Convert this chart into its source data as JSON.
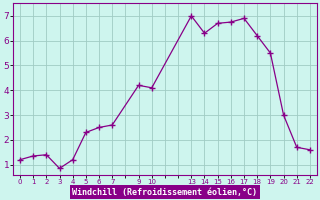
{
  "x": [
    0,
    1,
    2,
    3,
    4,
    5,
    6,
    7,
    9,
    10,
    13,
    14,
    15,
    16,
    17,
    18,
    19,
    20,
    21,
    22
  ],
  "y": [
    1.2,
    1.35,
    1.4,
    0.85,
    1.2,
    2.3,
    2.5,
    2.6,
    4.2,
    4.1,
    7.0,
    6.3,
    6.7,
    6.75,
    6.9,
    6.2,
    5.5,
    3.0,
    1.7,
    1.6
  ],
  "line_color": "#880088",
  "marker_color": "#880088",
  "bg_color": "#cef5ee",
  "grid_color": "#a0ccc4",
  "xlabel": "Windchill (Refroidissement éolien,°C)",
  "xlabel_color": "#880088",
  "ytick_labels": [
    "1",
    "2",
    "3",
    "4",
    "5",
    "6",
    "7"
  ],
  "ytick_vals": [
    1,
    2,
    3,
    4,
    5,
    6,
    7
  ],
  "xtick_vals": [
    0,
    1,
    2,
    3,
    4,
    5,
    6,
    7,
    8,
    9,
    10,
    11,
    12,
    13,
    14,
    15,
    16,
    17,
    18,
    19,
    20,
    21,
    22
  ],
  "xtick_labels": [
    "0",
    "1",
    "2",
    "3",
    "4",
    "5",
    "6",
    "7",
    "",
    "9",
    "10",
    "",
    "",
    "13",
    "14",
    "15",
    "16",
    "17",
    "18",
    "19",
    "20",
    "21",
    "22"
  ],
  "ylim": [
    0.6,
    7.5
  ],
  "xlim": [
    -0.5,
    22.5
  ],
  "spine_color": "#880088",
  "tick_color": "#880088",
  "bottom_bar_color": "#880088"
}
